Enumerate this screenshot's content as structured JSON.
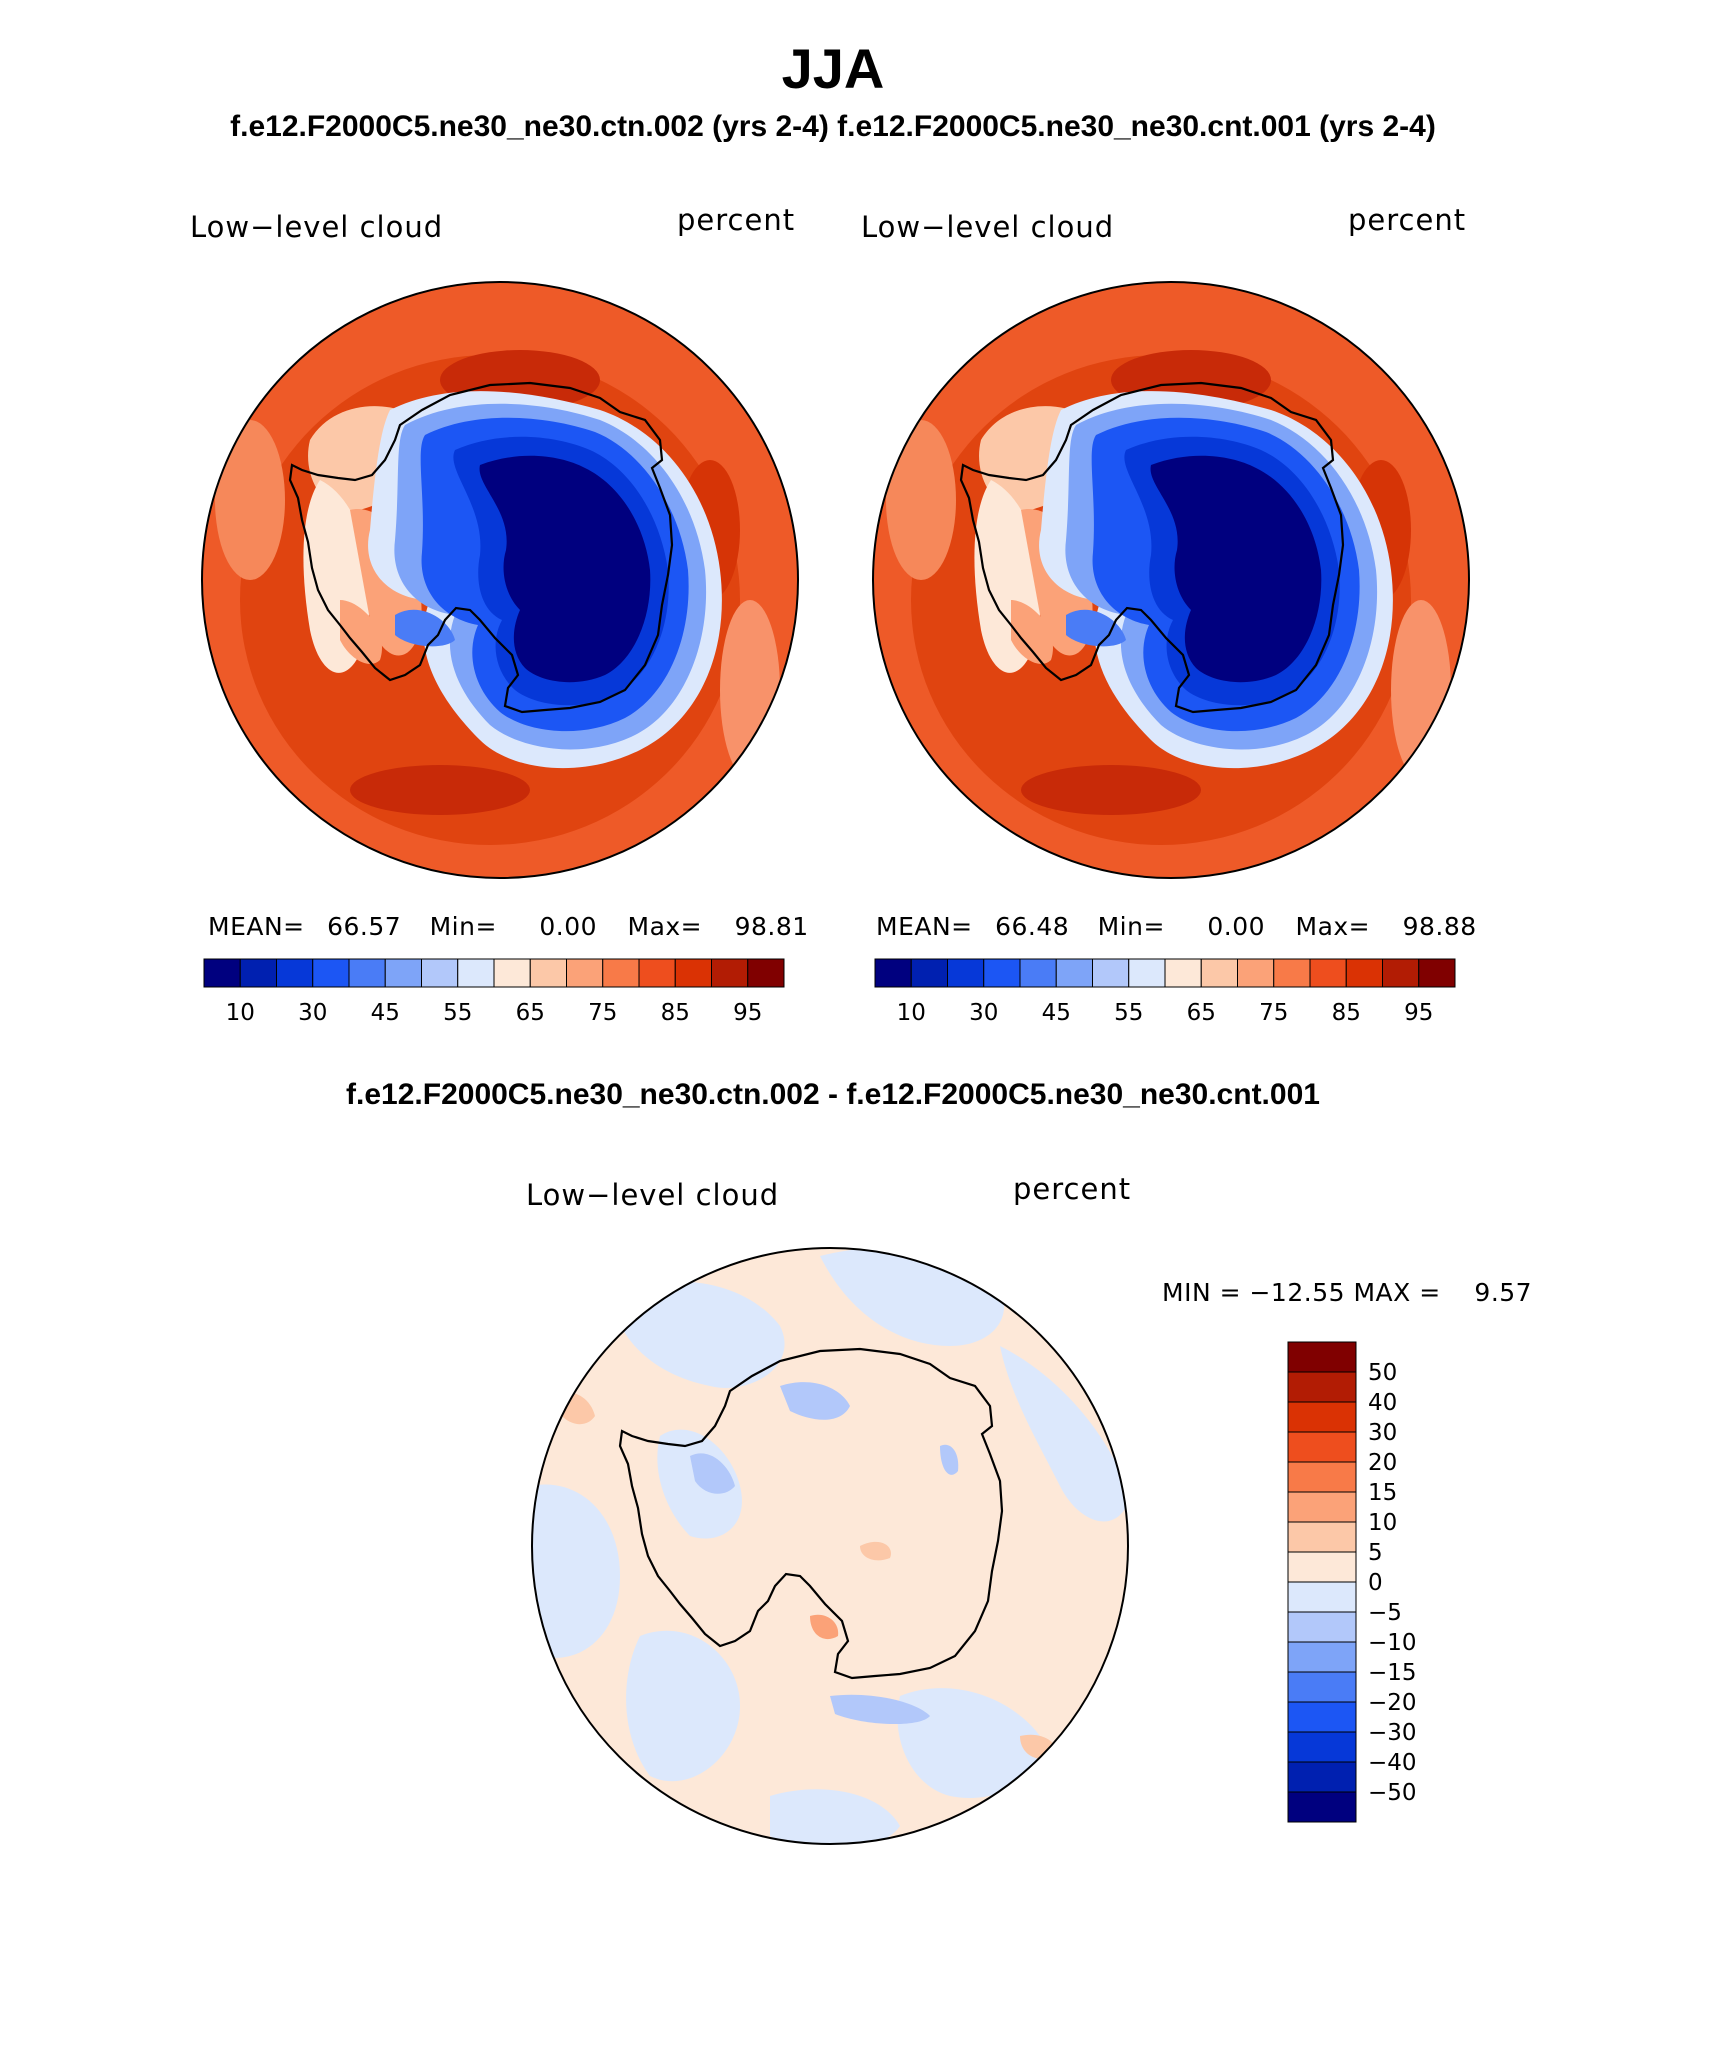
{
  "title": "JJA",
  "subtitle": "f.e12.F2000C5.ne30_ne30.ctn.002 (yrs 2-4) f.e12.F2000C5.ne30_ne30.cnt.001 (yrs 2-4)",
  "panels": [
    {
      "variable": "Low−level cloud",
      "units": "percent",
      "stats": {
        "mean_label": "MEAN=",
        "mean": "66.57",
        "min_label": "Min=",
        "min": "0.00",
        "max_label": "Max=",
        "max": "98.81"
      },
      "colorbar_ticks": [
        "10",
        "30",
        "45",
        "55",
        "65",
        "75",
        "85",
        "95"
      ]
    },
    {
      "variable": "Low−level cloud",
      "units": "percent",
      "stats": {
        "mean_label": "MEAN=",
        "mean": "66.48",
        "min_label": "Min=",
        "min": "0.00",
        "max_label": "Max=",
        "max": "98.88"
      },
      "colorbar_ticks": [
        "10",
        "30",
        "45",
        "55",
        "65",
        "75",
        "85",
        "95"
      ]
    }
  ],
  "diff": {
    "title": "f.e12.F2000C5.ne30_ne30.ctn.002 - f.e12.F2000C5.ne30_ne30.cnt.001",
    "variable": "Low−level cloud",
    "units": "percent",
    "minmax": "MIN = −12.55 MAX =    9.57",
    "colorbar_ticks": [
      "50",
      "40",
      "30",
      "20",
      "15",
      "10",
      "5",
      "0",
      "−5",
      "−10",
      "−15",
      "−20",
      "−30",
      "−40",
      "−50"
    ]
  },
  "colors": {
    "abs_scale": [
      "#00007f",
      "#0020b0",
      "#0638d8",
      "#1c56f4",
      "#4a7cf6",
      "#7ea4f8",
      "#b2c8fa",
      "#dce8fc",
      "#fde8d8",
      "#fcc8a8",
      "#fba278",
      "#f87a48",
      "#ee4e1e",
      "#da3204",
      "#b21c04",
      "#800000"
    ],
    "diff_scale": [
      "#00007f",
      "#0020b0",
      "#0638d8",
      "#1c56f4",
      "#4a7cf6",
      "#7ea4f8",
      "#b2c8fa",
      "#dce8fc",
      "#fde8d8",
      "#fcc8a8",
      "#fba278",
      "#f87a48",
      "#ee4e1e",
      "#da3204",
      "#b21c04",
      "#800000"
    ]
  }
}
